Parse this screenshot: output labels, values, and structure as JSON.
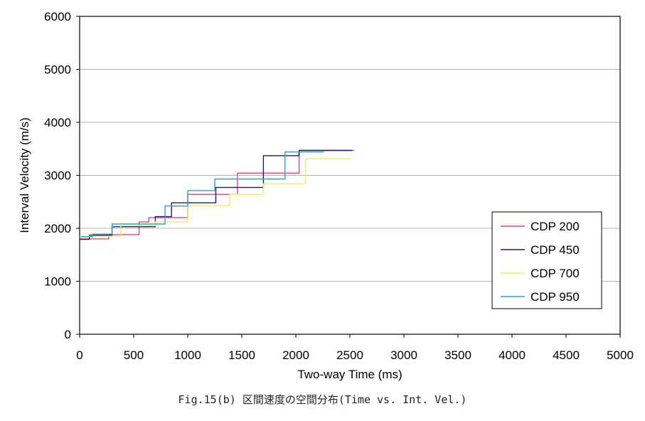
{
  "caption": "Fig.15(b)  区間速度の空間分布(Time vs. Int. Vel.)",
  "chart_data": {
    "type": "line",
    "step": true,
    "xlabel": "Two-way Time (ms)",
    "ylabel": "Interval Velocity (m/s)",
    "xlim": [
      0,
      5000
    ],
    "ylim": [
      0,
      6000
    ],
    "xticks": [
      0,
      500,
      1000,
      1500,
      2000,
      2500,
      3000,
      3500,
      4000,
      4500,
      5000
    ],
    "yticks": [
      0,
      1000,
      2000,
      3000,
      4000,
      5000,
      6000
    ],
    "grid": "horizontal",
    "legend": "right",
    "series": [
      {
        "name": "CDP 200",
        "color": "#e0408f",
        "points": [
          [
            0,
            1800
          ],
          [
            270,
            1800
          ],
          [
            270,
            1880
          ],
          [
            550,
            1880
          ],
          [
            550,
            2120
          ],
          [
            640,
            2120
          ],
          [
            640,
            2200
          ],
          [
            1000,
            2200
          ],
          [
            1000,
            2640
          ],
          [
            1460,
            2640
          ],
          [
            1460,
            3040
          ],
          [
            2030,
            3040
          ],
          [
            2030,
            3470
          ],
          [
            2540,
            3470
          ]
        ]
      },
      {
        "name": "CDP 450",
        "color": "#1f1f5c",
        "points": [
          [
            0,
            1790
          ],
          [
            90,
            1790
          ],
          [
            90,
            1870
          ],
          [
            300,
            1870
          ],
          [
            300,
            2030
          ],
          [
            700,
            2030
          ],
          [
            700,
            2220
          ],
          [
            850,
            2220
          ],
          [
            850,
            2480
          ],
          [
            1260,
            2480
          ],
          [
            1260,
            2770
          ],
          [
            1700,
            2770
          ],
          [
            1700,
            3370
          ],
          [
            2030,
            3370
          ],
          [
            2030,
            3470
          ],
          [
            2520,
            3470
          ]
        ]
      },
      {
        "name": "CDP 700",
        "color": "#f5ee55",
        "points": [
          [
            0,
            1850
          ],
          [
            380,
            1850
          ],
          [
            380,
            2050
          ],
          [
            700,
            2050
          ],
          [
            700,
            2120
          ],
          [
            1000,
            2120
          ],
          [
            1000,
            2430
          ],
          [
            1390,
            2430
          ],
          [
            1390,
            2640
          ],
          [
            1700,
            2640
          ],
          [
            1700,
            2840
          ],
          [
            2090,
            2840
          ],
          [
            2090,
            3310
          ],
          [
            2510,
            3310
          ]
        ]
      },
      {
        "name": "CDP 950",
        "color": "#2ea0c8",
        "points": [
          [
            0,
            1840
          ],
          [
            120,
            1840
          ],
          [
            120,
            1890
          ],
          [
            300,
            1890
          ],
          [
            300,
            2080
          ],
          [
            790,
            2080
          ],
          [
            790,
            2420
          ],
          [
            1000,
            2420
          ],
          [
            1000,
            2710
          ],
          [
            1250,
            2710
          ],
          [
            1250,
            2930
          ],
          [
            1900,
            2930
          ],
          [
            1900,
            3440
          ],
          [
            2260,
            3440
          ]
        ]
      }
    ]
  }
}
